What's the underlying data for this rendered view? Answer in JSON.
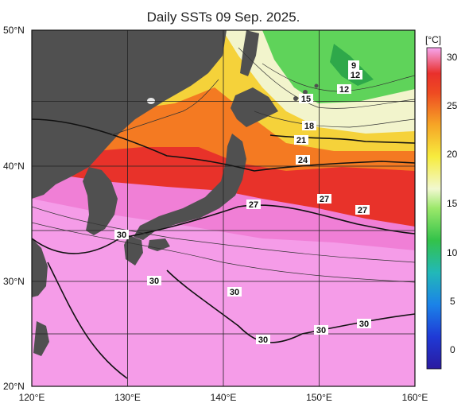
{
  "title": "Daily SSTs 09 Sep. 2025.",
  "colorbar": {
    "unit": "[°C]",
    "ticks": [
      "30",
      "25",
      "20",
      "15",
      "10",
      "5",
      "0"
    ]
  },
  "axes": {
    "lon_ticks": [
      "120°E",
      "130°E",
      "140°E",
      "150°E",
      "160°E"
    ],
    "lat_ticks": [
      "50°N",
      "40°N",
      "30°N",
      "20°N"
    ]
  },
  "contour_labels": [
    "9",
    "12",
    "12",
    "15",
    "18",
    "21",
    "24",
    "27",
    "27",
    "27",
    "30",
    "30",
    "30",
    "30",
    "30",
    "30"
  ],
  "colors": {
    "land": "#505050",
    "warm_pink": "#f59ce8",
    "red": "#e8322a",
    "orange": "#f47a22",
    "yellow": "#f5e03a",
    "green": "#5fd35a",
    "pale": "#f2f4cc"
  }
}
